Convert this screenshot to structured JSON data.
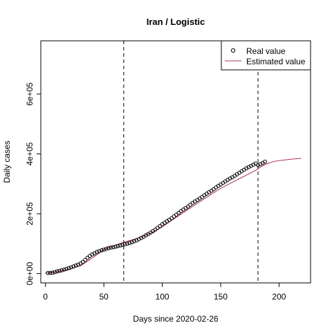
{
  "chart_data": {
    "type": "scatter",
    "title": "Iran / Logistic",
    "xlabel": "Days since 2020-02-26",
    "ylabel": "Daily cases",
    "xlim": [
      -4,
      227
    ],
    "ylim": [
      -31000,
      778000
    ],
    "x_ticks": [
      0,
      50,
      100,
      150,
      200
    ],
    "x_tick_labels": [
      "0",
      "50",
      "100",
      "150",
      "200"
    ],
    "y_ticks": [
      0,
      200000,
      400000,
      600000
    ],
    "y_tick_labels": [
      "0e+00",
      "2e+05",
      "4e+05",
      "6e+05"
    ],
    "vlines": [
      67,
      182
    ],
    "grid": false,
    "legend_position": "top-right",
    "colors": {
      "real": "#000000",
      "estimated": "#b0305a"
    },
    "series": [
      {
        "name": "Real value",
        "kind": "points",
        "x": [
          2,
          4,
          6,
          8,
          10,
          12,
          14,
          16,
          18,
          20,
          22,
          24,
          26,
          28,
          30,
          32,
          34,
          36,
          38,
          40,
          42,
          44,
          46,
          48,
          50,
          52,
          54,
          56,
          58,
          60,
          62,
          64,
          66,
          68,
          70,
          72,
          74,
          76,
          78,
          80,
          82,
          84,
          86,
          88,
          90,
          92,
          94,
          96,
          98,
          100,
          102,
          104,
          106,
          108,
          110,
          112,
          114,
          116,
          118,
          120,
          122,
          124,
          126,
          128,
          130,
          132,
          134,
          136,
          138,
          140,
          142,
          144,
          146,
          148,
          150,
          152,
          154,
          156,
          158,
          160,
          162,
          164,
          166,
          168,
          170,
          172,
          174,
          176,
          178,
          180,
          182,
          184,
          186,
          188
        ],
        "y": [
          2000,
          2500,
          3000,
          5000,
          7500,
          9000,
          11000,
          13500,
          16000,
          18500,
          21000,
          24000,
          27000,
          30000,
          34000,
          39000,
          46000,
          53000,
          59000,
          64000,
          68000,
          72000,
          75000,
          78000,
          80000,
          83000,
          85000,
          87000,
          88000,
          90000,
          92000,
          94000,
          96000,
          98000,
          100000,
          102000,
          105000,
          108000,
          111000,
          115000,
          119000,
          123000,
          128000,
          132000,
          137000,
          142000,
          147000,
          153000,
          159000,
          165000,
          170000,
          175000,
          180000,
          185000,
          191000,
          197000,
          203000,
          209000,
          214000,
          219000,
          224000,
          230000,
          236000,
          241000,
          246000,
          251000,
          256000,
          262000,
          267000,
          272000,
          277000,
          282000,
          288000,
          293000,
          298000,
          303000,
          308000,
          313000,
          318000,
          322000,
          327000,
          332000,
          337000,
          342000,
          347000,
          352000,
          356000,
          360000,
          364000,
          368000,
          362000,
          366000,
          370000,
          374000
        ]
      },
      {
        "name": "Estimated value",
        "kind": "line",
        "x": [
          0,
          10,
          20,
          30,
          40,
          50,
          60,
          70,
          80,
          90,
          100,
          110,
          120,
          130,
          140,
          150,
          160,
          170,
          180,
          185,
          190,
          195,
          200,
          205,
          210,
          215,
          219
        ],
        "y": [
          1500,
          6000,
          14000,
          26000,
          52000,
          80000,
          96000,
          108000,
          120000,
          135000,
          156000,
          183000,
          209000,
          235000,
          260000,
          285000,
          305000,
          325000,
          345000,
          358000,
          368000,
          374000,
          378000,
          380000,
          382000,
          384000,
          385000
        ]
      }
    ]
  }
}
